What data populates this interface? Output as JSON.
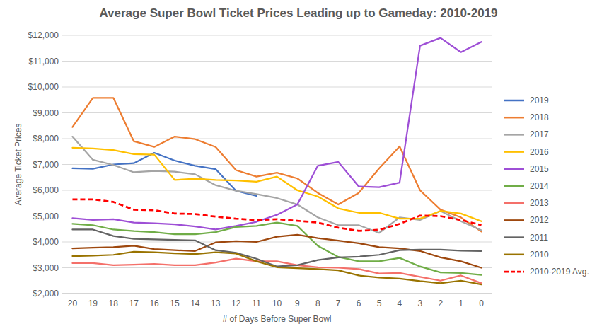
{
  "chart_data": {
    "type": "line",
    "title": "Average Super Bowl Ticket Prices Leading up to Gameday: 2010-2019",
    "x_label": "# of Days Before Super Bowl",
    "y_label": "Average Ticket Prices",
    "categories": [
      "20",
      "19",
      "18",
      "17",
      "16",
      "15",
      "14",
      "13",
      "12",
      "11",
      "10",
      "9",
      "8",
      "7",
      "6",
      "5",
      "4",
      "3",
      "2",
      "1",
      "0"
    ],
    "series": [
      {
        "name": "2019",
        "color": "#4472c4",
        "values": [
          6850,
          6830,
          7000,
          7050,
          7450,
          7150,
          6950,
          6820,
          5980,
          5780,
          null,
          null,
          null,
          null,
          null,
          null,
          null,
          null,
          null,
          null,
          null
        ]
      },
      {
        "name": "2018",
        "color": "#ed7d31",
        "values": [
          8450,
          9580,
          9580,
          7900,
          7680,
          8080,
          7980,
          7680,
          6780,
          6530,
          6680,
          6460,
          5900,
          5450,
          5900,
          6850,
          7700,
          6000,
          5250,
          4950,
          4400
        ]
      },
      {
        "name": "2017",
        "color": "#a5a5a5",
        "values": [
          8080,
          7180,
          6980,
          6700,
          6750,
          6720,
          6620,
          6200,
          5980,
          5850,
          5700,
          5450,
          4950,
          4650,
          4650,
          4350,
          4950,
          4850,
          5200,
          4800,
          4450
        ]
      },
      {
        "name": "2016",
        "color": "#ffc000",
        "values": [
          7650,
          7620,
          7560,
          7400,
          7380,
          6400,
          6450,
          6400,
          6380,
          6330,
          6530,
          6000,
          5760,
          5300,
          5130,
          5130,
          4900,
          4900,
          5200,
          5100,
          4800
        ]
      },
      {
        "name": "2015",
        "color": "#9e4fd6",
        "values": [
          4920,
          4850,
          4880,
          4750,
          4720,
          4680,
          4600,
          4480,
          4620,
          4780,
          5050,
          5450,
          6950,
          7100,
          6150,
          6120,
          6300,
          11600,
          11900,
          11350,
          11750
        ]
      },
      {
        "name": "2014",
        "color": "#70ad47",
        "values": [
          4700,
          4650,
          4480,
          4420,
          4380,
          4300,
          4300,
          4380,
          4580,
          4620,
          4750,
          4620,
          3850,
          3420,
          3250,
          3250,
          3380,
          3050,
          2820,
          2800,
          2720
        ]
      },
      {
        "name": "2013",
        "color": "#f4706a",
        "values": [
          3180,
          3180,
          3100,
          3120,
          3150,
          3100,
          3100,
          3200,
          3350,
          3250,
          3250,
          3100,
          3020,
          3000,
          2950,
          2780,
          2800,
          2650,
          2500,
          2700,
          2400
        ]
      },
      {
        "name": "2012",
        "color": "#9e480e",
        "values": [
          3750,
          3780,
          3800,
          3850,
          3720,
          3680,
          3650,
          3980,
          4030,
          4000,
          4200,
          4280,
          4150,
          4050,
          3950,
          3800,
          3750,
          3650,
          3400,
          3250,
          3000
        ]
      },
      {
        "name": "2011",
        "color": "#636363",
        "values": [
          4480,
          4480,
          4230,
          4120,
          4100,
          4080,
          4060,
          3680,
          3580,
          3350,
          3050,
          3100,
          3300,
          3400,
          3430,
          3500,
          3680,
          3700,
          3700,
          3660,
          3650
        ]
      },
      {
        "name": "2010",
        "color": "#997300",
        "values": [
          3450,
          3470,
          3500,
          3620,
          3600,
          3560,
          3530,
          3600,
          3550,
          3250,
          3020,
          2980,
          2950,
          2900,
          2700,
          2620,
          2580,
          2480,
          2400,
          2500,
          2350
        ]
      },
      {
        "name": "2010-2019 Avg.",
        "color": "#ff0000",
        "line_style": "dashed",
        "values": [
          5650,
          5650,
          5550,
          5250,
          5230,
          5100,
          5080,
          4980,
          4900,
          4850,
          4880,
          4820,
          4750,
          4550,
          4430,
          4470,
          4700,
          5020,
          5000,
          4850,
          4650
        ]
      }
    ],
    "ylim": [
      2000,
      12000
    ],
    "yticks": [
      {
        "value": 2000,
        "label": "$2,000"
      },
      {
        "value": 3000,
        "label": "$3,000"
      },
      {
        "value": 4000,
        "label": "$4,000"
      },
      {
        "value": 5000,
        "label": "$5,000"
      },
      {
        "value": 6000,
        "label": "$6,000"
      },
      {
        "value": 7000,
        "label": "$7,000"
      },
      {
        "value": 8000,
        "label": "$8,000"
      },
      {
        "value": 9000,
        "label": "$9,000"
      },
      {
        "value": 10000,
        "label": "$10,000"
      },
      {
        "value": 11000,
        "label": "$11,000"
      },
      {
        "value": 12000,
        "label": "$12,000"
      }
    ],
    "grid": true,
    "legend": "right"
  }
}
